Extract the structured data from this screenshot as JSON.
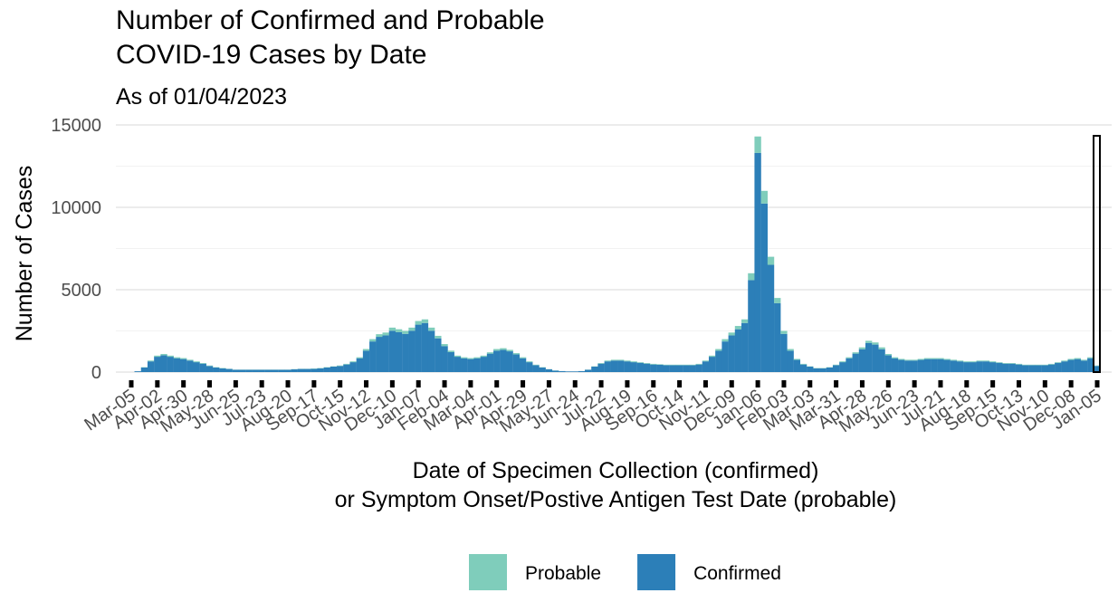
{
  "chart_data": {
    "type": "stacked_bar",
    "title": [
      "Number of Confirmed and Probable",
      "COVID-19 Cases by Date"
    ],
    "subtitle": "As of 01/04/2023",
    "y_label": "Number of Cases",
    "x_label": [
      "Date of Specimen Collection (confirmed)",
      "or Symptom Onset/Postive Antigen Test Date (probable)"
    ],
    "ylim": [
      0,
      15000
    ],
    "yticks": [
      0,
      5000,
      10000,
      15000
    ],
    "grid": true,
    "minor_grid": true,
    "legend_position": "bottom",
    "categories": [
      "Mar-05",
      null,
      null,
      null,
      "Apr-02",
      null,
      null,
      null,
      "Apr-30",
      null,
      null,
      null,
      "May-28",
      null,
      null,
      null,
      "Jun-25",
      null,
      null,
      null,
      "Jul-23",
      null,
      null,
      null,
      "Aug-20",
      null,
      null,
      null,
      "Sep-17",
      null,
      null,
      null,
      "Oct-15",
      null,
      null,
      null,
      "Nov-12",
      null,
      null,
      null,
      "Dec-10",
      null,
      null,
      null,
      "Jan-07",
      null,
      null,
      null,
      "Feb-04",
      null,
      null,
      null,
      "Mar-04",
      null,
      null,
      null,
      "Apr-01",
      null,
      null,
      null,
      "Apr-29",
      null,
      null,
      null,
      "May-27",
      null,
      null,
      null,
      "Jun-24",
      null,
      null,
      null,
      "Jul-22",
      null,
      null,
      null,
      "Aug-19",
      null,
      null,
      null,
      "Sep-16",
      null,
      null,
      null,
      "Oct-14",
      null,
      null,
      null,
      "Nov-11",
      null,
      null,
      null,
      "Dec-09",
      null,
      null,
      null,
      "Jan-06",
      null,
      null,
      null,
      "Feb-03",
      null,
      null,
      null,
      "Mar-03",
      null,
      null,
      null,
      "Mar-31",
      null,
      null,
      null,
      "Apr-28",
      null,
      null,
      null,
      "May-26",
      null,
      null,
      null,
      "Jun-23",
      null,
      null,
      null,
      "Jul-21",
      null,
      null,
      null,
      "Aug-18",
      null,
      null,
      null,
      "Sep-15",
      null,
      null,
      null,
      "Oct-13",
      null,
      null,
      null,
      "Nov-10",
      null,
      null,
      null,
      "Dec-08",
      null,
      null,
      null,
      "Jan-05"
    ],
    "series": [
      {
        "name": "Confirmed",
        "color": "#2c7fb8",
        "values": [
          0,
          50,
          280,
          650,
          930,
          1020,
          930,
          840,
          790,
          700,
          600,
          510,
          370,
          280,
          230,
          190,
          140,
          140,
          140,
          140,
          140,
          140,
          140,
          140,
          140,
          170,
          190,
          190,
          200,
          230,
          280,
          330,
          370,
          460,
          600,
          840,
          1300,
          1860,
          2140,
          2230,
          2510,
          2420,
          2320,
          2510,
          2880,
          2980,
          2510,
          2050,
          1580,
          1210,
          930,
          840,
          790,
          840,
          930,
          1120,
          1300,
          1350,
          1260,
          1070,
          840,
          600,
          420,
          280,
          170,
          90,
          60,
          40,
          40,
          60,
          140,
          330,
          510,
          650,
          700,
          700,
          650,
          600,
          560,
          510,
          460,
          450,
          420,
          420,
          420,
          420,
          420,
          460,
          650,
          930,
          1300,
          1860,
          2230,
          2600,
          2980,
          5580,
          13300,
          10230,
          6510,
          4180,
          2320,
          1300,
          740,
          460,
          330,
          230,
          230,
          280,
          420,
          600,
          840,
          1120,
          1390,
          1770,
          1670,
          1390,
          1020,
          840,
          740,
          700,
          700,
          740,
          790,
          790,
          790,
          740,
          700,
          650,
          600,
          600,
          650,
          650,
          600,
          560,
          510,
          510,
          460,
          420,
          420,
          420,
          420,
          460,
          560,
          650,
          740,
          790,
          700,
          840,
          370
        ]
      },
      {
        "name": "Probable",
        "color": "#7fcdbb",
        "values": [
          0,
          0,
          20,
          50,
          70,
          80,
          70,
          60,
          60,
          50,
          50,
          40,
          30,
          20,
          20,
          10,
          10,
          10,
          10,
          10,
          10,
          10,
          10,
          10,
          10,
          10,
          10,
          10,
          20,
          20,
          20,
          20,
          30,
          40,
          50,
          60,
          100,
          140,
          160,
          170,
          190,
          180,
          180,
          190,
          220,
          220,
          190,
          150,
          120,
          90,
          70,
          60,
          60,
          60,
          70,
          80,
          100,
          100,
          90,
          80,
          60,
          50,
          30,
          20,
          10,
          10,
          0,
          0,
          0,
          0,
          10,
          20,
          40,
          50,
          50,
          50,
          50,
          50,
          40,
          40,
          40,
          30,
          30,
          30,
          30,
          30,
          30,
          40,
          50,
          70,
          100,
          140,
          170,
          200,
          220,
          420,
          1000,
          770,
          490,
          320,
          180,
          100,
          60,
          40,
          20,
          20,
          20,
          20,
          30,
          50,
          60,
          80,
          110,
          130,
          130,
          110,
          80,
          60,
          60,
          50,
          50,
          60,
          60,
          60,
          60,
          60,
          50,
          50,
          50,
          50,
          50,
          50,
          50,
          40,
          40,
          40,
          40,
          30,
          30,
          30,
          30,
          40,
          40,
          50,
          60,
          60,
          50,
          60,
          30
        ]
      }
    ]
  }
}
